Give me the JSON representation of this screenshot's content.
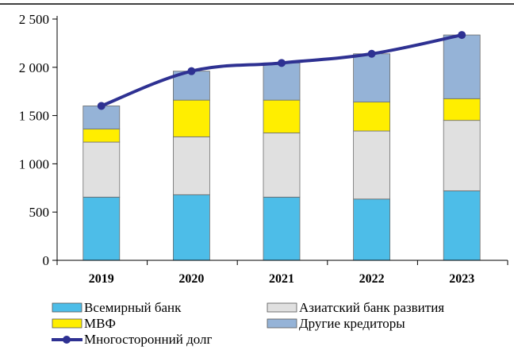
{
  "chart_data": {
    "type": "bar",
    "stacked": true,
    "categories": [
      "2019",
      "2020",
      "2021",
      "2022",
      "2023"
    ],
    "series": [
      {
        "name": "Всемирный банк",
        "color": "#4dbde8",
        "values": [
          655,
          680,
          655,
          635,
          720
        ]
      },
      {
        "name": "Азиатский банк развития",
        "color": "#e0e0e0",
        "values": [
          570,
          600,
          665,
          705,
          730
        ]
      },
      {
        "name": "МВФ",
        "color": "#ffee00",
        "values": [
          135,
          380,
          340,
          300,
          225
        ]
      },
      {
        "name": "Другие кредиторы",
        "color": "#95b3d7",
        "values": [
          240,
          300,
          385,
          500,
          660
        ]
      }
    ],
    "line_series": {
      "name": "Многосторонний долг",
      "color": "#2e3192",
      "values": [
        1600,
        1960,
        2045,
        2140,
        2335
      ]
    },
    "y_ticks": [
      "0",
      "500",
      "1 000",
      "1 500",
      "2 000",
      "2 500"
    ],
    "ylim": [
      0,
      2500
    ],
    "title": "",
    "xlabel": "",
    "ylabel": "",
    "grid": false,
    "legend_position": "bottom"
  }
}
